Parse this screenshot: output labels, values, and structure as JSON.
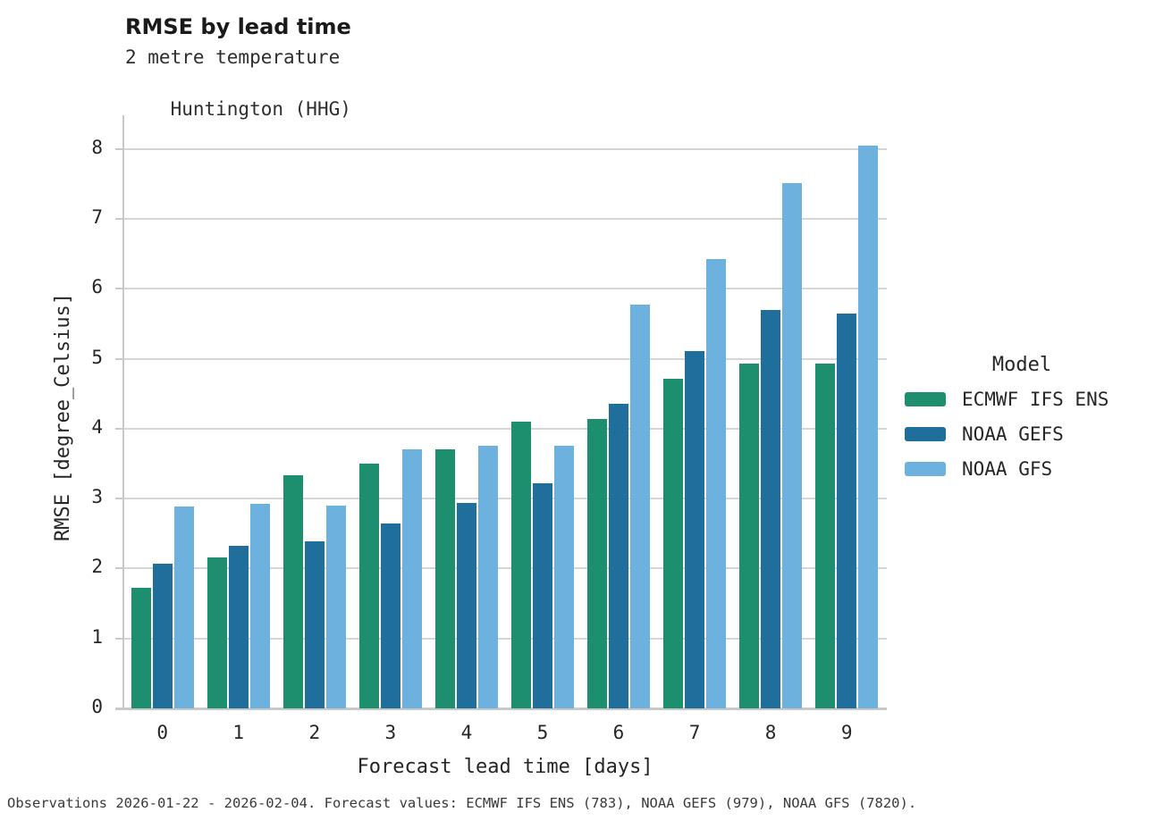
{
  "header": {
    "title": "RMSE by lead time",
    "subtitle_line1": "2 metre temperature",
    "subtitle_line2": "Huntington (HHG)"
  },
  "legend": {
    "title": "Model"
  },
  "footer": {
    "text": "Observations 2026-01-22 - 2026-02-04. Forecast values: ECMWF IFS ENS (783), NOAA GEFS (979), NOAA GFS (7820)."
  },
  "colors": {
    "ecmwf_green": "#1e8f6e",
    "gefs_dark_blue": "#1f6e9c",
    "gfs_light_blue": "#6db1de",
    "gridline": "#d6d6d6",
    "spine": "#c9c9c9"
  },
  "chart_data": {
    "type": "bar",
    "title": "RMSE by lead time",
    "subtitle": [
      "2 metre temperature",
      "Huntington (HHG)"
    ],
    "categories": [
      "0",
      "1",
      "2",
      "3",
      "4",
      "5",
      "6",
      "7",
      "8",
      "9"
    ],
    "series": [
      {
        "name": "ECMWF IFS ENS",
        "color": "#1e8f6e",
        "values": [
          1.72,
          2.16,
          3.33,
          3.5,
          3.7,
          4.1,
          4.14,
          4.71,
          4.93,
          4.93
        ]
      },
      {
        "name": "NOAA GEFS",
        "color": "#1f6e9c",
        "values": [
          2.07,
          2.32,
          2.39,
          2.64,
          2.94,
          3.22,
          4.36,
          5.11,
          5.7,
          5.64
        ]
      },
      {
        "name": "NOAA GFS",
        "color": "#6db1de",
        "values": [
          2.88,
          2.93,
          2.9,
          3.7,
          3.76,
          3.76,
          5.77,
          6.42,
          7.51,
          8.05
        ]
      }
    ],
    "xlabel": "Forecast lead time [days]",
    "ylabel": "RMSE [degree_Celsius]",
    "ylim": [
      0,
      8
    ],
    "yticks": [
      0,
      1,
      2,
      3,
      4,
      5,
      6,
      7,
      8
    ],
    "grid": true,
    "legend_title": "Model",
    "legend_position": "right"
  }
}
